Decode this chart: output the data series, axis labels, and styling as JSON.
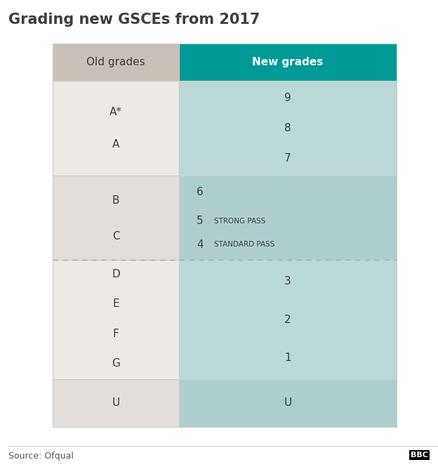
{
  "title": "Grading new GSCEs from 2017",
  "source": "Source: Ofqual",
  "bbc_logo": "BBC",
  "header_old": "Old grades",
  "header_new": "New grades",
  "header_teal_bg": "#009A96",
  "header_old_bg": "#C9C1B9",
  "row_odd_old_bg": "#EDEAE5",
  "row_odd_new_bg": "#BAD8D7",
  "row_even_old_bg": "#E3DED9",
  "row_even_new_bg": "#AECECE",
  "bg_color": "#FFFFFF",
  "title_fontsize": 15,
  "header_fontsize": 11,
  "cell_fontsize": 11,
  "annotation_fontsize": 7.5,
  "source_fontsize": 9,
  "text_dark": "#3D3D3D",
  "text_white": "#FFFFFF",
  "line_color": "#CCCCCC",
  "dashed_color": "#AAAAAA"
}
